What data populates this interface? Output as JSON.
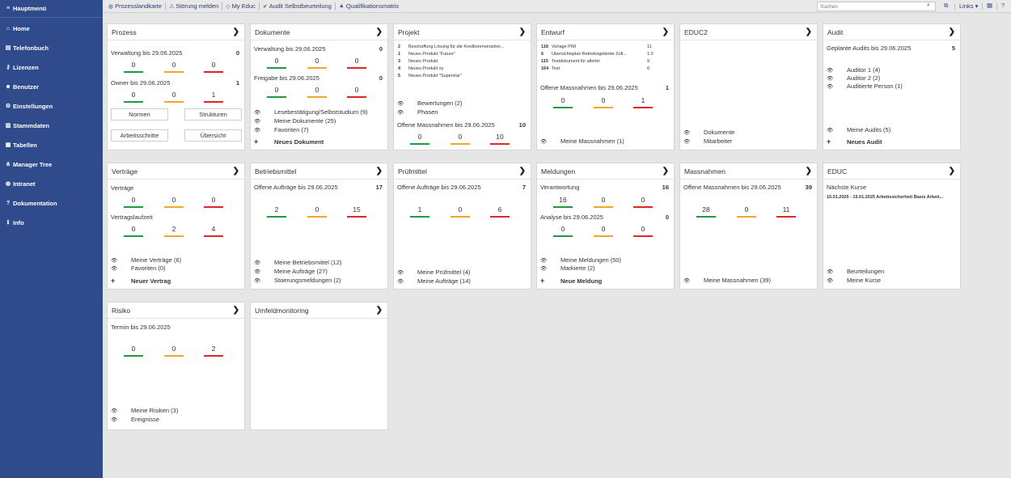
{
  "sidebar": {
    "items": [
      {
        "label": "Hauptmenü",
        "icon": "menu-icon"
      },
      {
        "label": "Home",
        "icon": "home-icon"
      },
      {
        "label": "Telefonbuch",
        "icon": "phonebook-icon"
      },
      {
        "label": "Lizenzen",
        "icon": "key-icon"
      },
      {
        "label": "Benutzer",
        "icon": "users-icon"
      },
      {
        "label": "Einstellungen",
        "icon": "gear-icon"
      },
      {
        "label": "Stammdaten",
        "icon": "database-icon"
      },
      {
        "label": "Tabellen",
        "icon": "table-icon"
      },
      {
        "label": "Manager Tree",
        "icon": "tree-icon"
      },
      {
        "label": "Intranet",
        "icon": "globe-icon"
      },
      {
        "label": "Dokumentation",
        "icon": "help-icon"
      },
      {
        "label": "Info",
        "icon": "info-icon"
      }
    ]
  },
  "topbar": {
    "links": [
      {
        "label": "Prozesslandkarte",
        "icon": "globe-icon"
      },
      {
        "label": "Störung melden",
        "icon": "warning-icon"
      },
      {
        "label": "My Educ",
        "icon": "diamond-icon"
      },
      {
        "label": "Audit Selbstbeurteilung",
        "icon": "check-icon"
      },
      {
        "label": "Qualifikationsmatrix",
        "icon": "graduation-icon"
      }
    ],
    "search_placeholder": "Suchen",
    "links_label": "Links ▾"
  },
  "colors": {
    "sidebar": "#2f4b8c",
    "green": "#1f9a3e",
    "orange": "#f2a52a",
    "red": "#e0252a"
  },
  "cards": {
    "prozess": {
      "title": "Prozess",
      "s1": "Verwaltung bis 29.06.2025",
      "s1n": "0",
      "s1v": [
        "0",
        "0",
        "0"
      ],
      "s2": "Owner bis 29.06.2025",
      "s2n": "1",
      "s2v": [
        "0",
        "0",
        "1"
      ],
      "buttons": [
        "Normen",
        "Strukturen",
        "Arbeitsschritte",
        "Übersicht"
      ]
    },
    "dokumente": {
      "title": "Dokumente",
      "s1": "Verwaltung bis 29.06.2025",
      "s1n": "0",
      "s1v": [
        "0",
        "0",
        "0"
      ],
      "s2": "Freigabe bis 29.06.2025",
      "s2n": "0",
      "s2v": [
        "0",
        "0",
        "0"
      ],
      "list": [
        "Lesebestätigung/Selbststudium (9)",
        "Meine Dokumente (25)",
        "Favoriten (7)"
      ],
      "add": "Neues Dokument"
    },
    "projekt": {
      "title": "Projekt",
      "rows": [
        {
          "c": "2",
          "l": "Beschaffung Lösung für die Kreditorenverarbei..."
        },
        {
          "c": "1",
          "l": "Neues Produkt \"Future\""
        },
        {
          "c": "3",
          "l": "Neues Produkt"
        },
        {
          "c": "4",
          "l": "Neues Produkt xy"
        },
        {
          "c": "5",
          "l": "Neues Produkt \"Superstar\""
        }
      ],
      "list": [
        "Bewertungen (2)",
        "Phasen"
      ],
      "s1": "Offene Massnahmen bis 29.06.2025",
      "s1n": "10",
      "s1v": [
        "0",
        "0",
        "10"
      ]
    },
    "entwurf": {
      "title": "Entwurf",
      "rows": [
        {
          "c": "118",
          "l": "Vorlage PIM",
          "x": "11"
        },
        {
          "c": "6",
          "l": "Übersichtsplan Betriebsgelände Zofi...",
          "x": "1.0"
        },
        {
          "c": "115",
          "l": "Testdokument für allerlei",
          "x": "9"
        },
        {
          "c": "164",
          "l": "Test",
          "x": "6"
        }
      ],
      "s1": "Offene Massnahmen bis 29.06.2025",
      "s1n": "1",
      "s1v": [
        "0",
        "0",
        "1"
      ],
      "list": [
        "Meine Massnahmen (1)"
      ]
    },
    "educ2": {
      "title": "EDUC2",
      "list": [
        "Dokumente",
        "Mitarbeiter"
      ]
    },
    "audit": {
      "title": "Audit",
      "s1": "Geplante Audits bis 29.06.2025",
      "s1n": "5",
      "list": [
        "Auditor 1 (4)",
        "Auditor 2 (2)",
        "Auditierte Person (1)"
      ],
      "list2": [
        "Meine Audits (5)"
      ],
      "add": "Neues Audit"
    },
    "vertraege": {
      "title": "Verträge",
      "s1": "Verträge",
      "s1v": [
        "0",
        "0",
        "0"
      ],
      "s2": "Vertragslaufzeit",
      "s2v": [
        "0",
        "2",
        "4"
      ],
      "list": [
        "Meine Verträge (6)",
        "Favoriten (0)"
      ],
      "add": "Neuer Vertrag"
    },
    "betriebsmittel": {
      "title": "Betriebsmittel",
      "s1": "Offene Aufträge bis 29.06.2025",
      "s1n": "17",
      "s1v": [
        "2",
        "0",
        "15"
      ],
      "list": [
        "Meine Betriebsmittel (12)",
        "Meine Aufträge (27)",
        "Stoerungsmeldungen (2)"
      ]
    },
    "pruefmittel": {
      "title": "Prüfmittel",
      "s1": "Offene Aufträge bis 29.06.2025",
      "s1n": "7",
      "s1v": [
        "1",
        "0",
        "6"
      ],
      "list": [
        "Meine Prüfmittel (4)",
        "Meine Aufträge (14)"
      ]
    },
    "meldungen": {
      "title": "Meldungen",
      "s1": "Verantwortung",
      "s1n": "16",
      "s1v": [
        "16",
        "0",
        "0"
      ],
      "s2": "Analyse bis 29.06.2025",
      "s2n": "0",
      "s2v": [
        "0",
        "0",
        "0"
      ],
      "list": [
        "Meine Meldungen (50)",
        "Markierte (2)"
      ],
      "add": "Neue Meldung"
    },
    "massnahmen": {
      "title": "Massnahmen",
      "s1": "Offene Massnahmen bis 29.06.2025",
      "s1n": "39",
      "s1v": [
        "28",
        "0",
        "11"
      ],
      "list": [
        "Meine Massnahmen (39)"
      ]
    },
    "educ": {
      "title": "EDUC",
      "s1": "Nächste Kurse",
      "course": "15.01.2025 - 15.01.2025 Arbeitssicherheit Basis Arbeit...",
      "list": [
        "Beurteilungen",
        "Meine Kurse"
      ]
    },
    "risiko": {
      "title": "Risiko",
      "s1": "Termin bis 29.06.2025",
      "s1v": [
        "0",
        "0",
        "2"
      ],
      "list": [
        "Meine Risiken (3)",
        "Ereignisse"
      ]
    },
    "umfeld": {
      "title": "Umfeldmonitoring"
    }
  }
}
